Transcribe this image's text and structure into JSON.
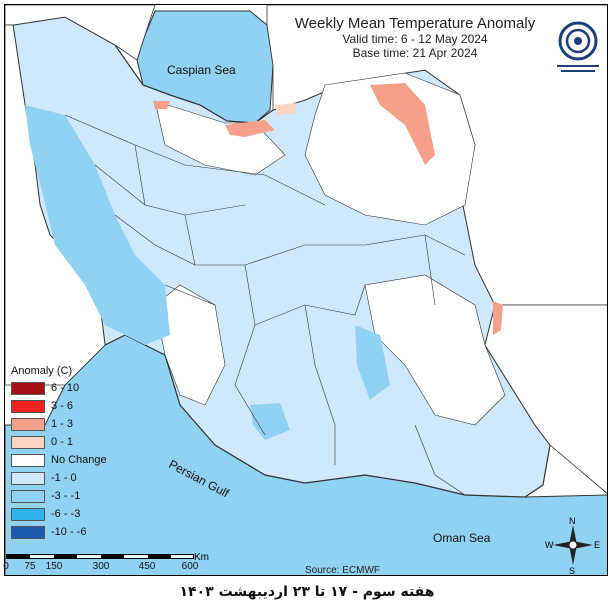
{
  "header": {
    "title": "Weekly Mean Temperature Anomaly",
    "valid_time": "Valid time: 6 - 12 May 2024",
    "base_time": "Base time: 21 Apr 2024"
  },
  "labels": {
    "caspian": "Caspian Sea",
    "persian_gulf": "Persian Gulf",
    "oman_sea": "Oman Sea",
    "source": "Source: ECMWF",
    "footer": "هفته سوم - ۱۷ تا ۲۳ اردیبهشت ۱۴۰۳"
  },
  "legend": {
    "title": "Anomaly (C)",
    "items": [
      {
        "label": "6 - 10",
        "color": "#a50f15"
      },
      {
        "label": "3 - 6",
        "color": "#f0231e"
      },
      {
        "label": "1 - 3",
        "color": "#f4a08a"
      },
      {
        "label": "0 - 1",
        "color": "#fbd4c4"
      },
      {
        "label": "No Change",
        "color": "#ffffff"
      },
      {
        "label": "-1 - 0",
        "color": "#cfe8fb"
      },
      {
        "label": "-3 - -1",
        "color": "#8fd2f2"
      },
      {
        "label": "-6 - -3",
        "color": "#2eb3ec"
      },
      {
        "label": "-10 - -6",
        "color": "#1c59b0"
      }
    ]
  },
  "scale": {
    "ticks": [
      "0",
      "75",
      "150",
      "300",
      "450",
      "600"
    ],
    "unit": "Km"
  },
  "compass": {
    "n": "N",
    "s": "S",
    "e": "E",
    "w": "W"
  },
  "colors": {
    "sea": "#8fd2f2",
    "land_light": "#cfe8fb",
    "border": "#333333"
  }
}
